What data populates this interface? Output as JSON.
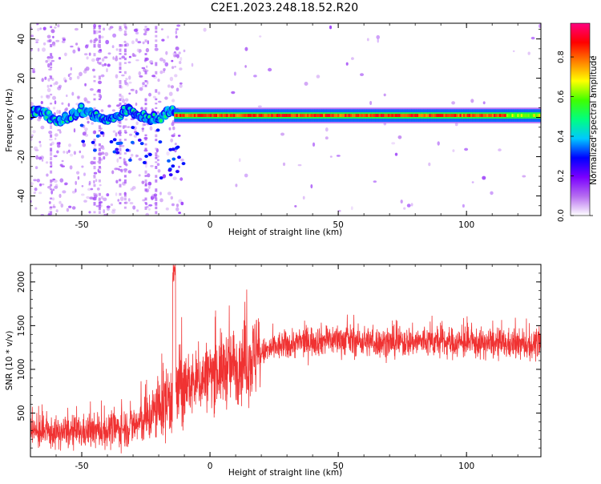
{
  "title": "C2E1.2023.248.18.52.R20",
  "chart_data": [
    {
      "type": "heatmap",
      "xlabel": "Height of straight line (km)",
      "ylabel": "Frequency (Hz)",
      "xlim": [
        -70,
        129
      ],
      "ylim": [
        -50,
        48
      ],
      "xticks": [
        -50,
        0,
        50,
        100
      ],
      "yticks": [
        -40,
        -20,
        0,
        20,
        40
      ],
      "colorbar": {
        "label": "Normalized spectral amplitude",
        "range": [
          0,
          0.97
        ],
        "ticks": [
          "0.0",
          "0.2",
          "0.4",
          "0.6",
          "0.8"
        ],
        "colormap": [
          "#ffffff",
          "#b66df0",
          "#7a00ff",
          "#0000ff",
          "#00c8ff",
          "#00ff80",
          "#40ff00",
          "#ffff00",
          "#ff8000",
          "#ff0000",
          "#ff0080"
        ]
      },
      "band": {
        "center_frequency_hz": 1,
        "segments": [
          {
            "x_range": [
              -70,
              -14
            ],
            "amplitude": "noisy 0.3-0.5, band wanders between -3 and +5 Hz"
          },
          {
            "x_range": [
              -14,
              129
            ],
            "amplitude": "0.8-0.95, steady near +1 Hz"
          }
        ],
        "grid": false
      }
    },
    {
      "type": "line",
      "xlabel": "Height of straight line (km)",
      "ylabel": "SNR (10 * v/v)",
      "xlim": [
        -70,
        129
      ],
      "ylim": [
        0,
        2200
      ],
      "xticks": [
        -50,
        0,
        50,
        100
      ],
      "yticks": [
        500,
        1000,
        1500,
        2000
      ],
      "series": [
        {
          "color": "#f03232",
          "trend": [
            [
              -70,
              280
            ],
            [
              -60,
              270
            ],
            [
              -50,
              280
            ],
            [
              -40,
              300
            ],
            [
              -30,
              350
            ],
            [
              -25,
              420
            ],
            [
              -20,
              550
            ],
            [
              -15,
              700
            ],
            [
              -10,
              800
            ],
            [
              -5,
              850
            ],
            [
              0,
              950
            ],
            [
              5,
              1000
            ],
            [
              10,
              1050
            ],
            [
              15,
              1100
            ],
            [
              20,
              1180
            ],
            [
              25,
              1250
            ],
            [
              30,
              1280
            ],
            [
              40,
              1330
            ],
            [
              50,
              1340
            ],
            [
              60,
              1320
            ],
            [
              70,
              1300
            ],
            [
              80,
              1320
            ],
            [
              90,
              1310
            ],
            [
              100,
              1300
            ],
            [
              110,
              1290
            ],
            [
              120,
              1280
            ],
            [
              129,
              1280
            ]
          ],
          "spike": {
            "x": -14,
            "y": 2200
          }
        }
      ],
      "grid": false
    }
  ]
}
